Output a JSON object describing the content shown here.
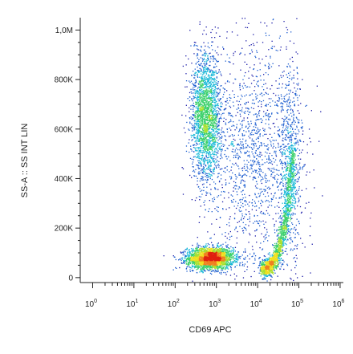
{
  "chart_data": {
    "type": "scatter",
    "subtype": "flow-cytometry-density-dot-plot",
    "xlabel": "CD69 APC",
    "ylabel": "SS-A :: SS INT LIN",
    "x_scale": "log",
    "y_scale": "linear",
    "xlim": [
      0.5,
      1200000
    ],
    "ylim": [
      -20000,
      1050000
    ],
    "x_ticks": [
      {
        "value": 1,
        "base": "10",
        "exp": "0"
      },
      {
        "value": 10,
        "base": "10",
        "exp": "1"
      },
      {
        "value": 100,
        "base": "10",
        "exp": "2"
      },
      {
        "value": 1000,
        "base": "10",
        "exp": "3"
      },
      {
        "value": 10000,
        "base": "10",
        "exp": "4"
      },
      {
        "value": 100000,
        "base": "10",
        "exp": "5"
      },
      {
        "value": 1000000,
        "base": "10",
        "exp": "6"
      }
    ],
    "y_ticks": [
      {
        "value": 0,
        "label": "0"
      },
      {
        "value": 200000,
        "label": "200K"
      },
      {
        "value": 400000,
        "label": "400K"
      },
      {
        "value": 600000,
        "label": "600K"
      },
      {
        "value": 800000,
        "label": "800K"
      },
      {
        "value": 1000000,
        "label": "1,0M"
      }
    ],
    "grid": false,
    "density_colormap": [
      "#1a1aa8",
      "#1f5fd0",
      "#18b8d8",
      "#3ad06a",
      "#a8e030",
      "#f0e020",
      "#f08020",
      "#e02010"
    ],
    "populations": [
      {
        "cx": 700,
        "cy": 80000,
        "sx_log": 0.28,
        "sy": 22000,
        "count": 2600
      },
      {
        "cx": 25000,
        "cy": 110000,
        "sx_log": 0.18,
        "sy": 45000,
        "count": 1500
      },
      {
        "cx": 550,
        "cy": 650000,
        "sx_log": 0.18,
        "sy": 130000,
        "count": 2200
      },
      {
        "cx": 60000,
        "cy": 450000,
        "sx_log": 0.15,
        "sy": 200000,
        "count": 700
      },
      {
        "cx": 8000,
        "cy": 500000,
        "sx_log": 0.55,
        "sy": 250000,
        "count": 1400
      }
    ]
  }
}
